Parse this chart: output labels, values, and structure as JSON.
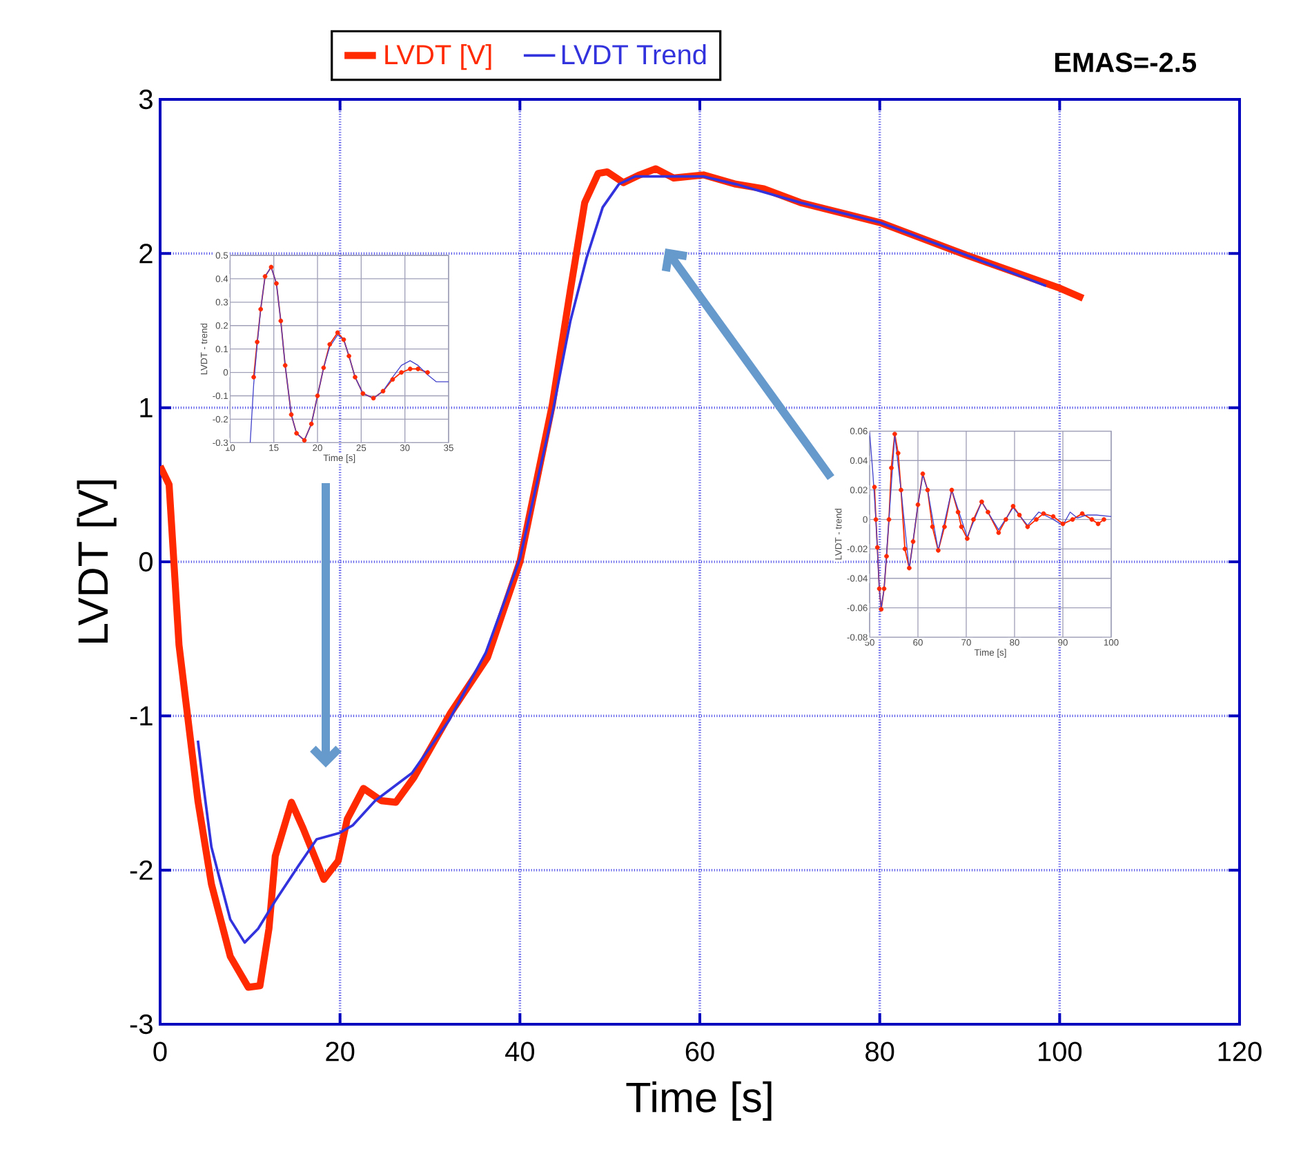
{
  "chart_data": [
    {
      "type": "line",
      "xlabel": "Time [s]",
      "ylabel": "LVDT [V]",
      "xlim": [
        0,
        120
      ],
      "ylim": [
        -3,
        3
      ],
      "xticks": [
        0,
        20,
        40,
        60,
        80,
        100,
        120
      ],
      "yticks": [
        -3,
        -2,
        -1,
        0,
        1,
        2,
        3
      ],
      "grid": true,
      "legend": "top",
      "annotations": [
        "EMAS=-2.5"
      ],
      "series": [
        {
          "name": "LVDT [V]",
          "color": "#ff2a00",
          "x": [
            0,
            1,
            2.1,
            3.2,
            4.2,
            5.7,
            7.8,
            9.8,
            11.1,
            12.1,
            12.8,
            14.6,
            15.9,
            18.2,
            19.8,
            20.8,
            22.6,
            24.6,
            26.2,
            28.2,
            32.3,
            36.4,
            40,
            43.6,
            45.6,
            47.2,
            48.7,
            49.7,
            51.5,
            53.3,
            55.1,
            57.1,
            60.4,
            64,
            67.1,
            71.2,
            80.1,
            89.6,
            99.8,
            102.6
          ],
          "values": [
            0.62,
            0.5,
            -0.54,
            -1.07,
            -1.55,
            -2.09,
            -2.56,
            -2.76,
            -2.75,
            -2.38,
            -1.91,
            -1.56,
            -1.73,
            -2.06,
            -1.94,
            -1.67,
            -1.47,
            -1.55,
            -1.56,
            -1.4,
            -0.98,
            -0.62,
            0,
            1.02,
            1.76,
            2.33,
            2.52,
            2.53,
            2.46,
            2.51,
            2.55,
            2.49,
            2.51,
            2.45,
            2.42,
            2.33,
            2.2,
            1.99,
            1.78,
            1.71
          ]
        },
        {
          "name": "LVDT  Trend",
          "color": "#3333dd",
          "x": [
            4.2,
            4.7,
            5.7,
            6.5,
            7.8,
            9.4,
            10.9,
            12.8,
            15.4,
            17.4,
            19.9,
            21.4,
            23.9,
            28,
            32.1,
            36.2,
            40,
            43.6,
            45.6,
            47.4,
            49.2,
            51,
            52.8,
            56.9,
            60.4,
            64,
            71.2,
            80.1,
            89.6,
            98.5
          ],
          "values": [
            -1.16,
            -1.4,
            -1.85,
            -2.03,
            -2.32,
            -2.47,
            -2.38,
            -2.2,
            -1.97,
            -1.8,
            -1.76,
            -1.71,
            -1.55,
            -1.37,
            -1.03,
            -0.59,
            0.02,
            0.96,
            1.56,
            1.97,
            2.3,
            2.45,
            2.5,
            2.5,
            2.5,
            2.45,
            2.33,
            2.2,
            1.99,
            1.79
          ]
        }
      ]
    },
    {
      "type": "line",
      "xlabel": "Time [s]",
      "ylabel": "LVDT - trend",
      "xlim": [
        10,
        35
      ],
      "ylim": [
        -0.3,
        0.5
      ],
      "xticks": [
        10,
        15,
        20,
        25,
        30,
        35
      ],
      "yticks": [
        -0.3,
        -0.2,
        -0.1,
        0,
        0.1,
        0.2,
        0.3,
        0.4,
        0.5
      ],
      "grid": true,
      "series": [
        {
          "color": "#ff2a00",
          "marker": "circle",
          "x": [
            12.7,
            13.1,
            13.5,
            14,
            14.7,
            15.3,
            15.8,
            16.3,
            17,
            17.6,
            18.5,
            19.3,
            20,
            20.7,
            21.4,
            22.3,
            23,
            23.6,
            24.3,
            25.2,
            26.4,
            27.5,
            28.6,
            29.6,
            30.6,
            31.5,
            32.6
          ],
          "values": [
            -0.02,
            0.13,
            0.27,
            0.41,
            0.45,
            0.38,
            0.22,
            0.03,
            -0.18,
            -0.26,
            -0.29,
            -0.22,
            -0.1,
            0.02,
            0.12,
            0.17,
            0.14,
            0.07,
            -0.02,
            -0.09,
            -0.11,
            -0.08,
            -0.03,
            0,
            0.015,
            0.015,
            0
          ]
        },
        {
          "color": "#4444cc",
          "marker": "none",
          "x": [
            12.3,
            12.7,
            13.1,
            13.5,
            14,
            14.7,
            15.3,
            15.8,
            16.3,
            17,
            17.6,
            18.5,
            19.3,
            20,
            20.7,
            21.4,
            22.3,
            23,
            23.6,
            24.3,
            25.2,
            26.4,
            27.5,
            28.6,
            29.6,
            30.6,
            31.5,
            32.6,
            33.6,
            35
          ],
          "values": [
            -0.3,
            -0.05,
            0.12,
            0.27,
            0.41,
            0.45,
            0.38,
            0.22,
            0.03,
            -0.18,
            -0.26,
            -0.29,
            -0.22,
            -0.1,
            0.02,
            0.11,
            0.16,
            0.14,
            0.07,
            -0.02,
            -0.09,
            -0.11,
            -0.08,
            -0.02,
            0.03,
            0.05,
            0.03,
            -0.01,
            -0.04,
            -0.04
          ]
        }
      ]
    },
    {
      "type": "line",
      "xlabel": "Time [s]",
      "ylabel": "LVDT - trend",
      "xlim": [
        50,
        100
      ],
      "ylim": [
        -0.08,
        0.06
      ],
      "xticks": [
        50,
        60,
        70,
        80,
        90,
        100
      ],
      "yticks": [
        -0.08,
        -0.06,
        -0.04,
        -0.02,
        0,
        0.02,
        0.04,
        0.06
      ],
      "grid": true,
      "series": [
        {
          "color": "#ff2a00",
          "marker": "circle",
          "x": [
            51,
            51.3,
            51.6,
            52,
            52.4,
            53,
            53.5,
            54,
            54.5,
            55.2,
            55.9,
            56.5,
            57.3,
            58.2,
            59,
            60,
            61,
            62,
            63,
            64.2,
            65.5,
            67,
            68.3,
            69,
            70.2,
            71.5,
            73.2,
            74.5,
            76.7,
            78.2,
            79.7,
            81,
            82.7,
            84.5,
            86,
            88,
            90,
            92,
            94,
            96,
            97.3,
            98.5
          ],
          "values": [
            0.022,
            0,
            -0.019,
            -0.047,
            -0.061,
            -0.047,
            -0.025,
            0,
            0.035,
            0.058,
            0.045,
            0.02,
            -0.02,
            -0.033,
            -0.015,
            0.01,
            0.031,
            0.02,
            -0.005,
            -0.021,
            -0.005,
            0.02,
            0.005,
            -0.005,
            -0.013,
            0,
            0.012,
            0.005,
            -0.009,
            0,
            0.009,
            0.003,
            -0.005,
            0,
            0.004,
            0.002,
            -0.003,
            0,
            0.004,
            0,
            -0.003,
            0
          ]
        },
        {
          "color": "#4444cc",
          "marker": "none",
          "x": [
            50,
            50.7,
            51.3,
            52,
            52.4,
            53,
            54,
            55.2,
            56.5,
            58.2,
            60,
            61,
            62,
            64.2,
            67,
            70.2,
            73.2,
            76.7,
            79.7,
            82.7,
            85,
            88,
            90,
            91.5,
            93,
            95,
            97,
            100
          ],
          "values": [
            0.059,
            0.03,
            0,
            -0.047,
            -0.06,
            -0.047,
            0,
            0.057,
            0.02,
            -0.034,
            0.01,
            0.03,
            0.02,
            -0.021,
            0.02,
            -0.012,
            0.012,
            -0.007,
            0.008,
            -0.004,
            0.005,
            0,
            -0.004,
            0.005,
            0.001,
            0.003,
            0.003,
            0.002
          ]
        }
      ]
    }
  ]
}
